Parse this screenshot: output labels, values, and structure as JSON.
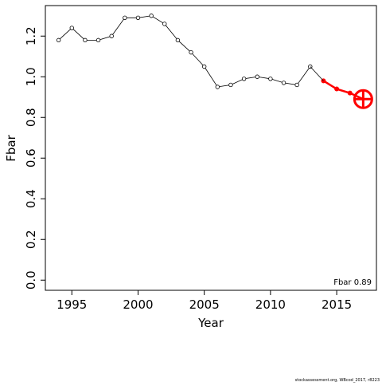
{
  "chart_data": {
    "type": "line",
    "x": [
      1994,
      1995,
      1996,
      1997,
      1998,
      1999,
      2000,
      2001,
      2002,
      2003,
      2004,
      2005,
      2006,
      2007,
      2008,
      2009,
      2010,
      2011,
      2012,
      2013,
      2014,
      2015,
      2016,
      2017
    ],
    "series": [
      {
        "color": "#000000",
        "values": [
          1.18,
          1.24,
          1.18,
          1.18,
          1.2,
          1.29,
          1.29,
          1.3,
          1.26,
          1.18,
          1.12,
          1.05,
          0.95,
          0.96,
          0.99,
          1.0,
          0.99,
          0.97,
          0.96,
          1.05,
          null,
          null,
          null,
          null
        ]
      },
      {
        "color": "#ff0000",
        "values": [
          null,
          null,
          null,
          null,
          null,
          null,
          null,
          null,
          null,
          null,
          null,
          null,
          null,
          null,
          null,
          null,
          null,
          null,
          null,
          null,
          0.98,
          0.94,
          0.92,
          0.89
        ]
      }
    ],
    "xlabel": "Year",
    "ylabel": "Fbar",
    "xlim": [
      1993,
      2018
    ],
    "ylim": [
      -0.05,
      1.35
    ],
    "xticks": [
      1995,
      2000,
      2005,
      2010,
      2015
    ],
    "yticks": [
      {
        "value": 0,
        "label": "0.0"
      },
      {
        "value": 0.2,
        "label": "0.2"
      },
      {
        "value": 0.4,
        "label": "0.4"
      },
      {
        "value": 0.6,
        "label": "0.6"
      },
      {
        "value": 0.8,
        "label": "0.8"
      },
      {
        "value": 1,
        "label": "1.0"
      },
      {
        "value": 1.2,
        "label": "1.2"
      }
    ],
    "annotation": "Fbar 0.89",
    "footer": "stockassessment.org, WBcod_2017, r8223"
  }
}
